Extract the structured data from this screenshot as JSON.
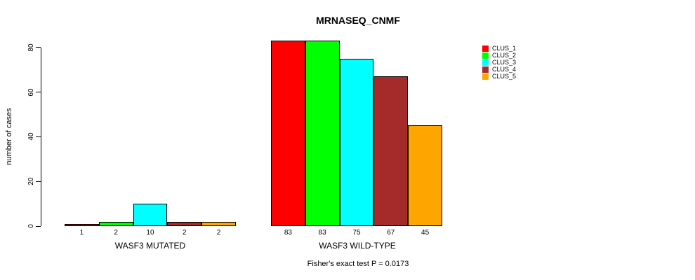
{
  "chart_data": {
    "type": "bar",
    "title": "MRNASEQ_CNMF",
    "ylabel": "number of cases",
    "xlabel": "",
    "subtitle": "Fisher's exact test P = 0.0173",
    "ylim": [
      0,
      80
    ],
    "yticks": [
      0,
      20,
      40,
      60,
      80
    ],
    "grid": false,
    "legend_position": "top-right",
    "bar_border_color": "#000000",
    "categories": [
      "WASF3 MUTATED",
      "WASF3 WILD-TYPE"
    ],
    "series": [
      {
        "name": "CLUS_1",
        "color": "#FF0000",
        "values": [
          1,
          83
        ]
      },
      {
        "name": "CLUS_2",
        "color": "#00FF00",
        "values": [
          2,
          83
        ]
      },
      {
        "name": "CLUS_3",
        "color": "#00FFFF",
        "values": [
          10,
          75
        ]
      },
      {
        "name": "CLUS_4",
        "color": "#A52A2A",
        "values": [
          2,
          67
        ]
      },
      {
        "name": "CLUS_5",
        "color": "#FFA500",
        "values": [
          2,
          45
        ]
      }
    ]
  }
}
